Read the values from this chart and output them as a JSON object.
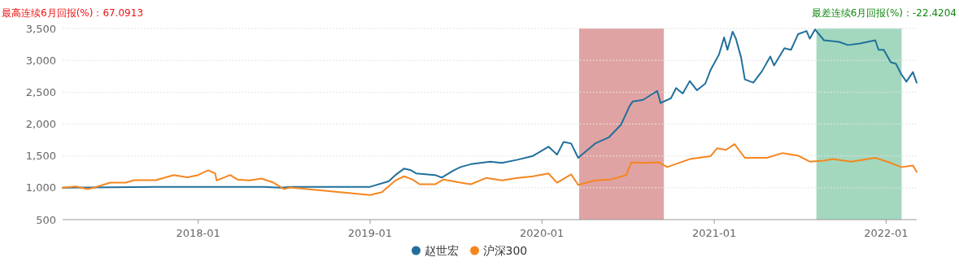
{
  "chart_data": {
    "type": "line",
    "annotations": [
      "最高连续6月回报(%)：67.0913",
      "最差连续6月回报(%)：-22.4204"
    ],
    "xlim": [
      "2017-03-19",
      "2022-03-07"
    ],
    "ylim": [
      500,
      3500
    ],
    "xticks": [
      "2018-01",
      "2019-01",
      "2020-01",
      "2021-01",
      "2022-01"
    ],
    "yticks": [
      500,
      {
        "value": 1000,
        "label": "1,000"
      },
      {
        "value": 1500,
        "label": "1,500"
      },
      {
        "value": 2000,
        "label": "2,000"
      },
      {
        "value": 2500,
        "label": "2,500"
      },
      {
        "value": 3000,
        "label": "3,000"
      },
      {
        "value": 3500,
        "label": "3,500"
      }
    ],
    "grid": "y",
    "legend": "bottom",
    "bands": [
      {
        "axis": "x",
        "from": "2020-03-20",
        "to": "2020-09-16",
        "color": "#e0a3a3"
      },
      {
        "axis": "x",
        "from": "2021-08-06",
        "to": "2022-02-03",
        "color": "#a3d8bf"
      }
    ],
    "series": [
      {
        "name": "赵世宏",
        "color": "#21709c",
        "x": [
          "2017-03-19",
          "2017-10-03",
          "2018-05-22",
          "2018-06-24",
          "2018-07-20",
          "2019-01-01",
          "2019-02-09",
          "2019-02-24",
          "2019-03-14",
          "2019-03-29",
          "2019-04-09",
          "2019-05-19",
          "2019-06-02",
          "2019-06-28",
          "2019-07-12",
          "2019-08-03",
          "2019-09-13",
          "2019-10-08",
          "2019-11-10",
          "2019-12-13",
          "2020-01-15",
          "2020-02-02",
          "2020-02-16",
          "2020-03-03",
          "2020-03-18",
          "2020-04-23",
          "2020-05-22",
          "2020-06-17",
          "2020-07-05",
          "2020-07-12",
          "2020-08-03",
          "2020-09-02",
          "2020-09-09",
          "2020-10-01",
          "2020-10-12",
          "2020-10-26",
          "2020-11-10",
          "2020-11-25",
          "2020-12-13",
          "2020-12-24",
          "2021-01-11",
          "2021-01-22",
          "2021-01-29",
          "2021-02-09",
          "2021-02-16",
          "2021-02-27",
          "2021-03-07",
          "2021-03-25",
          "2021-04-12",
          "2021-04-30",
          "2021-05-08",
          "2021-05-30",
          "2021-06-13",
          "2021-06-28",
          "2021-07-16",
          "2021-07-23",
          "2021-08-03",
          "2021-08-22",
          "2021-09-23",
          "2021-10-12",
          "2021-11-06",
          "2021-12-09",
          "2021-12-16",
          "2021-12-27",
          "2022-01-11",
          "2022-01-22",
          "2022-02-02",
          "2022-02-13",
          "2022-02-27",
          "2022-03-07"
        ],
        "values": [
          1000,
          1015,
          1015,
          1000,
          1015,
          1015,
          1100,
          1200,
          1300,
          1275,
          1225,
          1200,
          1160,
          1275,
          1325,
          1370,
          1410,
          1390,
          1440,
          1500,
          1645,
          1520,
          1720,
          1695,
          1470,
          1695,
          1790,
          1990,
          2280,
          2355,
          2380,
          2520,
          2330,
          2405,
          2565,
          2480,
          2675,
          2530,
          2635,
          2845,
          3090,
          3360,
          3165,
          3450,
          3340,
          3045,
          2700,
          2650,
          2825,
          3060,
          2920,
          3190,
          3165,
          3410,
          3460,
          3340,
          3485,
          3315,
          3290,
          3240,
          3265,
          3315,
          3165,
          3165,
          2970,
          2945,
          2785,
          2665,
          2815,
          2650
        ]
      },
      {
        "name": "沪深300",
        "color": "#f5861f",
        "x": [
          "2017-03-19",
          "2017-04-16",
          "2017-05-11",
          "2017-05-26",
          "2017-06-28",
          "2017-07-31",
          "2017-08-18",
          "2017-10-03",
          "2017-11-10",
          "2017-12-09",
          "2018-01-01",
          "2018-01-22",
          "2018-02-06",
          "2018-02-09",
          "2018-03-10",
          "2018-03-25",
          "2018-04-20",
          "2018-05-15",
          "2018-06-10",
          "2018-07-02",
          "2018-07-16",
          "2019-01-01",
          "2019-01-26",
          "2019-02-24",
          "2019-03-14",
          "2019-04-01",
          "2019-04-16",
          "2019-05-19",
          "2019-06-06",
          "2019-07-12",
          "2019-08-03",
          "2019-09-05",
          "2019-10-08",
          "2019-11-10",
          "2019-12-13",
          "2020-01-15",
          "2020-02-02",
          "2020-03-03",
          "2020-03-18",
          "2020-04-23",
          "2020-05-26",
          "2020-06-28",
          "2020-07-09",
          "2020-08-03",
          "2020-09-05",
          "2020-09-23",
          "2020-11-10",
          "2020-12-24",
          "2021-01-07",
          "2021-01-26",
          "2021-02-13",
          "2021-03-07",
          "2021-04-23",
          "2021-05-26",
          "2021-06-28",
          "2021-07-23",
          "2021-08-22",
          "2021-09-09",
          "2021-10-19",
          "2021-12-09",
          "2022-01-07",
          "2022-02-02",
          "2022-02-27",
          "2022-03-07"
        ],
        "values": [
          1000,
          1020,
          980,
          1005,
          1080,
          1080,
          1120,
          1120,
          1200,
          1165,
          1200,
          1275,
          1225,
          1115,
          1200,
          1130,
          1115,
          1145,
          1080,
          980,
          1005,
          885,
          930,
          1115,
          1180,
          1130,
          1055,
          1055,
          1130,
          1080,
          1055,
          1155,
          1115,
          1155,
          1180,
          1225,
          1080,
          1210,
          1045,
          1115,
          1130,
          1200,
          1400,
          1390,
          1400,
          1325,
          1450,
          1495,
          1620,
          1595,
          1685,
          1470,
          1470,
          1545,
          1505,
          1410,
          1425,
          1450,
          1410,
          1470,
          1400,
          1325,
          1350,
          1250
        ]
      }
    ]
  }
}
